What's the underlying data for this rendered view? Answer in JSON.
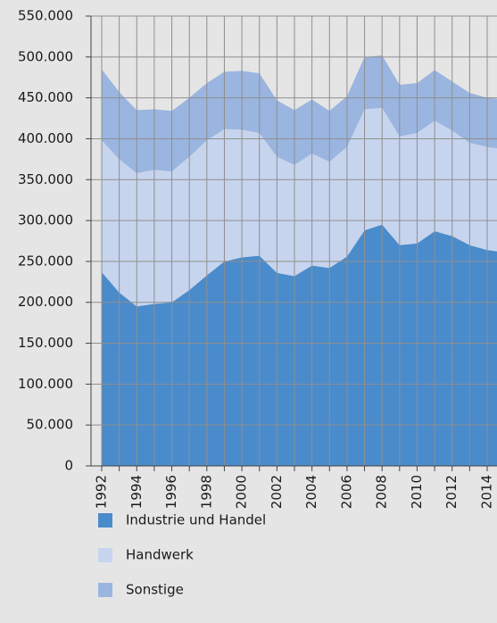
{
  "chart_data": {
    "type": "stacked-area",
    "x": [
      1992,
      1993,
      1994,
      1995,
      1996,
      1997,
      1998,
      1999,
      2000,
      2001,
      2002,
      2003,
      2004,
      2005,
      2006,
      2007,
      2008,
      2009,
      2010,
      2011,
      2012,
      2013,
      2014,
      2015
    ],
    "xlim": [
      1992,
      2015
    ],
    "xticks": [
      1992,
      1994,
      1996,
      1998,
      2000,
      2002,
      2004,
      2006,
      2008,
      2010,
      2012,
      2014
    ],
    "ylim": [
      0,
      550000
    ],
    "yticks": [
      0,
      {
        "value": 50000,
        "label": "50.000"
      },
      {
        "value": 100000,
        "label": "100.000"
      },
      {
        "value": 150000,
        "label": "150.000"
      },
      {
        "value": 200000,
        "label": "200.000"
      },
      {
        "value": 250000,
        "label": "250.000"
      },
      {
        "value": 300000,
        "label": "300.000"
      },
      {
        "value": 350000,
        "label": "350.000"
      },
      {
        "value": 400000,
        "label": "400.000"
      },
      {
        "value": 450000,
        "label": "450.000"
      },
      {
        "value": 500000,
        "label": "500.000"
      },
      {
        "value": 550000,
        "label": "550.000"
      }
    ],
    "grid": true,
    "series": [
      {
        "name": "Industrie und Handel",
        "color": "#4a8bcb",
        "values": [
          237000,
          212000,
          195000,
          198000,
          200000,
          215000,
          233000,
          250000,
          255000,
          257000,
          236000,
          232000,
          245000,
          242000,
          256000,
          288000,
          295000,
          270000,
          272000,
          287000,
          281000,
          270000,
          264000,
          261000
        ]
      },
      {
        "name": "Handwerk",
        "color": "#c6d4ee",
        "values": [
          161000,
          163000,
          163000,
          164000,
          160000,
          163000,
          165000,
          162000,
          156000,
          150000,
          142000,
          136000,
          137000,
          130000,
          134000,
          148000,
          143000,
          133000,
          135000,
          135000,
          129000,
          125000,
          126000,
          126000
        ]
      },
      {
        "name": "Sonstige",
        "color": "#9ab5df",
        "values": [
          87000,
          82000,
          77000,
          74000,
          74000,
          72000,
          70000,
          70000,
          72000,
          73000,
          69000,
          67000,
          66000,
          62000,
          62000,
          64000,
          64000,
          63000,
          61000,
          62000,
          60000,
          61000,
          60000,
          61000
        ]
      }
    ]
  }
}
